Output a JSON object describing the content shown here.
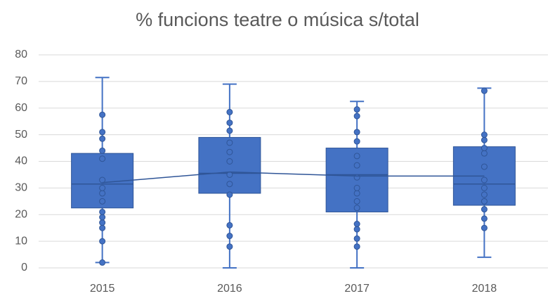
{
  "chart_data": {
    "type": "box",
    "title": "% funcions teatre o música s/total",
    "categories": [
      "2015",
      "2016",
      "2017",
      "2018"
    ],
    "color": "#4472c4",
    "ylim": [
      0,
      80
    ],
    "yticks": [
      0,
      10,
      20,
      30,
      40,
      50,
      60,
      70,
      80
    ],
    "grid": true,
    "boxes": [
      {
        "min": 2,
        "q1": 22.5,
        "median": 31.5,
        "q3": 43,
        "max": 71.5,
        "mean": 32,
        "points": [
          2,
          10,
          15,
          17,
          19,
          21,
          25,
          28,
          30,
          33,
          41,
          44,
          48.5,
          51,
          57.5
        ]
      },
      {
        "min": 0,
        "q1": 28,
        "median": 35.5,
        "q3": 49,
        "max": 69,
        "mean": 36,
        "points": [
          8,
          12,
          16,
          27.5,
          31.5,
          35,
          40,
          43.5,
          47,
          51.5,
          54.5,
          58.5
        ]
      },
      {
        "min": 0,
        "q1": 21,
        "median": 35,
        "q3": 45,
        "max": 62.5,
        "mean": 34.5,
        "points": [
          8,
          11,
          14.5,
          16.5,
          22.5,
          25,
          28,
          30,
          34,
          38.5,
          42,
          47.5,
          51,
          57,
          59.5
        ]
      },
      {
        "min": 4,
        "q1": 23.5,
        "median": 31.5,
        "q3": 45.5,
        "max": 67.5,
        "mean": 34.5,
        "points": [
          15,
          18.5,
          22,
          25,
          27.5,
          30,
          33,
          38,
          43,
          45,
          48,
          50,
          66.5
        ]
      }
    ]
  }
}
